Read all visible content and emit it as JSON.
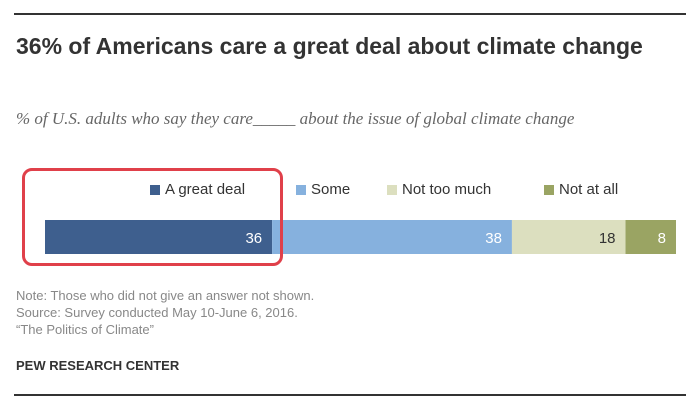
{
  "header": {
    "title": "36% of Americans care a great deal about climate change",
    "subtitle": "% of U.S. adults who say they care_____ about the issue of global climate change"
  },
  "chart_data": {
    "type": "bar",
    "orientation": "horizontal-stacked",
    "categories": [
      ""
    ],
    "series": [
      {
        "name": "A great deal",
        "values": [
          36
        ],
        "color": "#3e5f8e"
      },
      {
        "name": "Some",
        "values": [
          38
        ],
        "color": "#86b1de"
      },
      {
        "name": "Not too much",
        "values": [
          18
        ],
        "color": "#dcdfbf"
      },
      {
        "name": "Not at all",
        "values": [
          8
        ],
        "color": "#9aa463"
      }
    ],
    "data_labels": [
      "36",
      "38",
      "18",
      "8"
    ],
    "legend_position": "top",
    "grid": false
  },
  "annotation": {
    "highlight": "A great deal",
    "color": "#e0404a"
  },
  "footer": {
    "note": "Note: Those who did not give an answer not shown.",
    "source": "Source: Survey conducted May 10-June 6, 2016.",
    "report": "“The Politics of Climate”",
    "brand": "PEW RESEARCH CENTER"
  }
}
